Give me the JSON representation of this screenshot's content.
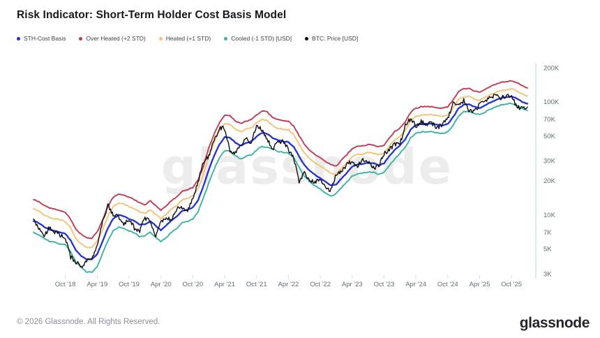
{
  "header": {
    "title": "Risk Indicator: Short-Term Holder Cost Basis Model"
  },
  "footer": {
    "copyright": "© 2026 Glassnode. All Rights Reserved.",
    "brand": "glassnode"
  },
  "watermark": "glassnode",
  "chart_data": {
    "type": "line",
    "title": "Risk Indicator: Short-Term Holder Cost Basis Model",
    "x_unit": "month",
    "x_start": "2018-04",
    "x_end": "2026-01",
    "x_step_months": 1,
    "x_tick_labels": [
      "Oct '18",
      "Apr '19",
      "Oct '19",
      "Apr '20",
      "Oct '20",
      "Apr '21",
      "Oct '21",
      "Apr '22",
      "Oct '22",
      "Apr '23",
      "Oct '23",
      "Apr '24",
      "Oct '24",
      "Apr '25",
      "Oct '25"
    ],
    "x_tick_month_indices": [
      6,
      12,
      18,
      24,
      30,
      36,
      42,
      48,
      54,
      60,
      66,
      72,
      78,
      84,
      90
    ],
    "y_scale": "log",
    "y_axis_side": "right",
    "y_unit": "USD",
    "y_tick_labels": [
      "200K",
      "100K",
      "70K",
      "50K",
      "30K",
      "20K",
      "10K",
      "7K",
      "5K",
      "3K"
    ],
    "y_tick_values_usd_k": [
      200,
      100,
      70,
      50,
      30,
      20,
      10,
      7,
      5,
      3
    ],
    "y_domain_usd_k": [
      2.85,
      220
    ],
    "legend_order": [
      3,
      0,
      1,
      2,
      4
    ],
    "grid": false,
    "style_hints": {
      "price_noise_pct": 4.5,
      "band_noise_pct": 1.0
    },
    "series": [
      {
        "name": "Over Heated (+2 STD)",
        "color": "#c03a52",
        "values_usd_k": [
          13.6,
          13.0,
          12.1,
          11.5,
          11.2,
          10.9,
          10.5,
          9.1,
          7.4,
          6.7,
          6.2,
          6.2,
          7.0,
          9.0,
          11.8,
          14.3,
          15.3,
          15.0,
          14.3,
          13.6,
          12.7,
          12.3,
          13.2,
          12.0,
          11.0,
          12.0,
          13.4,
          14.4,
          16.2,
          16.5,
          17.4,
          20.3,
          27.0,
          39.0,
          51.5,
          65.5,
          75.7,
          74.9,
          67.9,
          64.0,
          67.1,
          69.4,
          76.4,
          82.7,
          81.1,
          73.0,
          69.2,
          67.6,
          66.9,
          60.8,
          50.2,
          41.8,
          37.2,
          34.2,
          31.9,
          29.6,
          27.7,
          26.8,
          30.5,
          34.1,
          38.4,
          40.3,
          40.6,
          41.8,
          41.3,
          39.9,
          41.3,
          47.9,
          54.4,
          58.2,
          66.0,
          80.2,
          88.0,
          90.2,
          90.9,
          90.2,
          88.8,
          87.3,
          90.2,
          103.7,
          123.5,
          129.7,
          131.1,
          124.9,
          121.4,
          128.3,
          135.9,
          142.8,
          148.4,
          151.1,
          153.9,
          147.7,
          138.0,
          132.5
        ]
      },
      {
        "name": "Heated (+1 STD)",
        "color": "#f6c173",
        "values_usd_k": [
          11.3,
          10.8,
          10.0,
          9.5,
          9.2,
          9.0,
          8.7,
          7.6,
          6.1,
          5.5,
          5.1,
          5.1,
          5.8,
          7.4,
          9.7,
          11.8,
          12.7,
          12.4,
          11.8,
          11.3,
          10.5,
          10.3,
          11.1,
          10.1,
          9.2,
          10.1,
          11.2,
          12.1,
          13.6,
          13.9,
          14.6,
          17.0,
          22.7,
          33.0,
          43.6,
          55.4,
          64.0,
          63.4,
          57.4,
          54.1,
          56.8,
          58.7,
          64.7,
          70.0,
          68.6,
          61.4,
          58.2,
          57.0,
          56.3,
          51.2,
          42.2,
          35.2,
          31.4,
          28.8,
          26.9,
          25.0,
          23.3,
          22.8,
          25.8,
          28.9,
          32.6,
          34.2,
          34.4,
          35.4,
          35.1,
          33.8,
          35.1,
          40.6,
          46.1,
          49.2,
          55.8,
          67.8,
          74.4,
          76.2,
          76.8,
          76.2,
          75.0,
          73.8,
          76.2,
          87.6,
          104.4,
          110.0,
          111.2,
          105.9,
          103.0,
          108.8,
          115.2,
          121.1,
          125.8,
          128.1,
          130.5,
          125.2,
          117.0,
          112.3
        ]
      },
      {
        "name": "Cooled (-1 STD) [USD]",
        "color": "#39b3a4",
        "values_usd_k": [
          7.0,
          6.6,
          6.2,
          5.8,
          5.7,
          5.5,
          5.4,
          4.7,
          3.8,
          3.4,
          3.1,
          3.1,
          3.5,
          4.5,
          5.9,
          7.2,
          7.7,
          7.6,
          7.2,
          6.9,
          6.4,
          6.5,
          7.0,
          6.3,
          5.8,
          6.3,
          7.0,
          7.6,
          8.5,
          8.7,
          9.2,
          10.7,
          14.2,
          19.0,
          25.1,
          31.9,
          36.9,
          36.5,
          33.1,
          31.2,
          32.7,
          33.8,
          37.2,
          40.3,
          39.5,
          38.4,
          36.4,
          35.6,
          35.2,
          32.0,
          26.4,
          22.0,
          19.6,
          18.0,
          16.8,
          15.6,
          14.6,
          15.4,
          17.4,
          19.5,
          22.0,
          23.1,
          23.2,
          23.9,
          23.7,
          22.8,
          23.7,
          27.4,
          31.1,
          34.9,
          39.5,
          48.0,
          52.7,
          54.0,
          54.4,
          54.0,
          53.1,
          52.3,
          54.0,
          62.1,
          74.0,
          81.8,
          82.7,
          78.7,
          76.6,
          80.9,
          85.7,
          90.0,
          93.5,
          95.3,
          97.0,
          93.1,
          87.0,
          83.5
        ]
      },
      {
        "name": "STH-Cost Basis",
        "color": "#2230d6",
        "values_usd_k": [
          8.8,
          8.4,
          7.8,
          7.4,
          7.2,
          7.0,
          6.8,
          5.9,
          4.8,
          4.3,
          4.0,
          4.0,
          4.5,
          5.8,
          7.6,
          9.2,
          9.9,
          9.7,
          9.2,
          8.8,
          8.2,
          8.2,
          8.8,
          8.0,
          7.3,
          8.0,
          8.9,
          9.6,
          10.8,
          11.0,
          11.6,
          13.5,
          18.0,
          25.0,
          33.0,
          42.0,
          48.5,
          48.0,
          43.5,
          41.0,
          43.0,
          44.5,
          49.0,
          53.0,
          52.0,
          48.0,
          45.5,
          44.5,
          44.0,
          40.0,
          33.0,
          27.5,
          24.5,
          22.5,
          21.0,
          19.5,
          18.2,
          18.5,
          21.0,
          23.5,
          26.5,
          27.8,
          28.0,
          28.8,
          28.5,
          27.5,
          28.5,
          33.0,
          37.5,
          41.0,
          46.5,
          56.5,
          62.0,
          63.5,
          64.0,
          63.5,
          62.5,
          61.5,
          63.5,
          73.0,
          87.0,
          94.0,
          95.0,
          90.5,
          88.0,
          93.0,
          98.5,
          103.5,
          107.5,
          109.5,
          111.5,
          107.0,
          100.0,
          96.0
        ]
      },
      {
        "name": "BTC: Price [USD]",
        "color": "#0d0d0d",
        "values_usd_k": [
          9.2,
          7.5,
          6.4,
          7.8,
          7.0,
          6.6,
          6.3,
          4.2,
          3.8,
          3.5,
          3.9,
          4.1,
          5.3,
          8.6,
          12.0,
          10.0,
          9.6,
          8.3,
          9.2,
          7.6,
          7.2,
          9.4,
          8.6,
          6.4,
          8.7,
          9.5,
          9.1,
          11.4,
          11.7,
          10.8,
          13.8,
          19.7,
          29.0,
          33.1,
          45.2,
          58.9,
          57.8,
          37.3,
          35.0,
          41.6,
          47.2,
          43.8,
          61.3,
          57.0,
          46.2,
          38.5,
          43.2,
          45.5,
          37.7,
          31.8,
          19.9,
          23.3,
          20.0,
          19.4,
          20.5,
          17.1,
          16.5,
          23.1,
          23.5,
          28.5,
          29.2,
          27.2,
          30.5,
          29.2,
          26.0,
          26.9,
          34.7,
          37.7,
          42.3,
          42.6,
          61.2,
          71.3,
          60.6,
          67.5,
          62.7,
          64.6,
          59.0,
          63.3,
          70.2,
          96.4,
          93.4,
          102.4,
          84.4,
          82.5,
          94.2,
          104.6,
          107.1,
          115.8,
          108.2,
          114.0,
          110.1,
          91.0,
          87.0,
          90.0
        ]
      }
    ]
  }
}
